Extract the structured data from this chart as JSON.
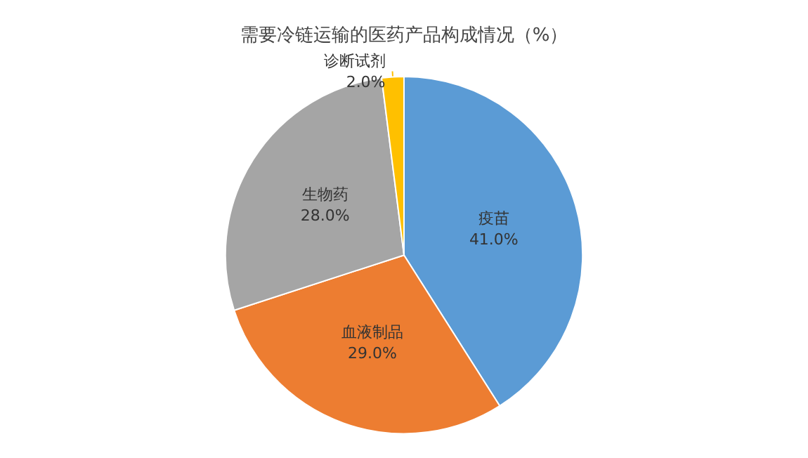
{
  "chart_data": {
    "type": "pie",
    "title": "需要冷链运输的医药产品构成情况（%）",
    "categories": [
      "疫苗",
      "血液制品",
      "生物药",
      "诊断试剂"
    ],
    "values": [
      41,
      29,
      28,
      2
    ],
    "value_labels": [
      "41.0%",
      "29.0%",
      "28.0%",
      "2.0%"
    ],
    "colors": [
      "#5b9bd5",
      "#ed7d31",
      "#a5a5a5",
      "#ffc000"
    ],
    "legend": false
  }
}
